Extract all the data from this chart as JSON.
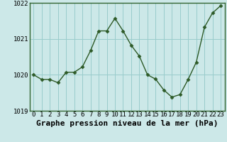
{
  "x": [
    0,
    1,
    2,
    3,
    4,
    5,
    6,
    7,
    8,
    9,
    10,
    11,
    12,
    13,
    14,
    15,
    16,
    17,
    18,
    19,
    20,
    21,
    22,
    23
  ],
  "y": [
    1020.0,
    1019.87,
    1019.87,
    1019.78,
    1020.07,
    1020.07,
    1020.22,
    1020.67,
    1021.22,
    1021.22,
    1021.57,
    1021.22,
    1020.82,
    1020.52,
    1020.0,
    1019.88,
    1019.58,
    1019.38,
    1019.45,
    1019.87,
    1020.35,
    1021.32,
    1021.72,
    1021.92
  ],
  "line_color": "#2d5a27",
  "marker": "D",
  "marker_size": 2.5,
  "background_color": "#cce8e8",
  "plot_bg_color": "#cce8e8",
  "grid_color": "#99cccc",
  "xlabel": "Graphe pression niveau de la mer (hPa)",
  "xlabel_fontsize": 8,
  "ylim": [
    1019.0,
    1022.0
  ],
  "xlim": [
    -0.5,
    23.5
  ],
  "yticks": [
    1019,
    1020,
    1021,
    1022
  ],
  "xticks": [
    0,
    1,
    2,
    3,
    4,
    5,
    6,
    7,
    8,
    9,
    10,
    11,
    12,
    13,
    14,
    15,
    16,
    17,
    18,
    19,
    20,
    21,
    22,
    23
  ],
  "tick_fontsize": 6.5,
  "xlabel_fontsize_label": 8,
  "border_color": "#336633",
  "border_lw": 1.0
}
